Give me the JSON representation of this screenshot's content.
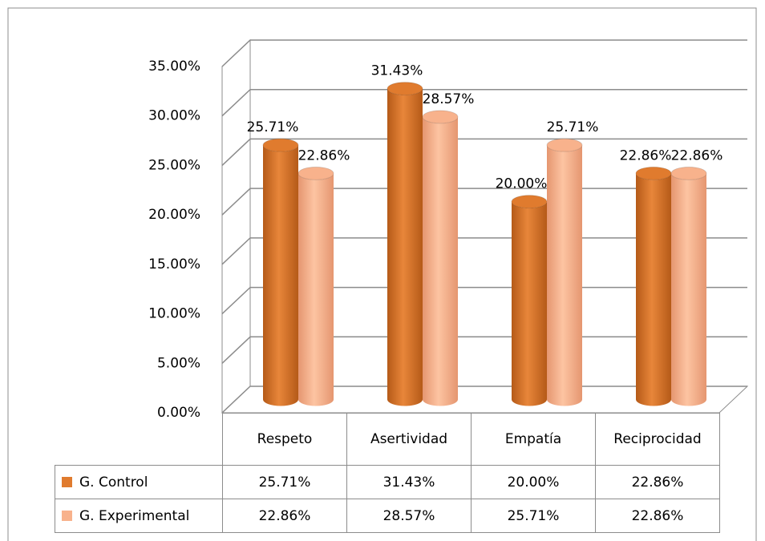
{
  "chart_data": {
    "type": "bar3d",
    "categories": [
      "Respeto",
      "Asertividad",
      "Empatía",
      "Reciprocidad"
    ],
    "series": [
      {
        "name": "G. Control",
        "color": "#e07b2e",
        "values": [
          25.71,
          31.43,
          20.0,
          22.86
        ],
        "value_labels": [
          "25.71%",
          "31.43%",
          "20.00%",
          "22.86%"
        ]
      },
      {
        "name": "G. Experimental",
        "color": "#f8b28c",
        "values": [
          22.86,
          28.57,
          25.71,
          22.86
        ],
        "value_labels": [
          "22.86%",
          "28.57%",
          "25.71%",
          "22.86%"
        ]
      }
    ],
    "ylim": [
      0,
      35
    ],
    "yticks": [
      {
        "value": 0,
        "label": "0.00%"
      },
      {
        "value": 5,
        "label": "5.00%"
      },
      {
        "value": 10,
        "label": "10.00%"
      },
      {
        "value": 15,
        "label": "15.00%"
      },
      {
        "value": 20,
        "label": "20.00%"
      },
      {
        "value": 25,
        "label": "25.00%"
      },
      {
        "value": 30,
        "label": "30.00%"
      },
      {
        "value": 35,
        "label": "35.00%"
      }
    ],
    "grid": true,
    "data_table": true
  }
}
